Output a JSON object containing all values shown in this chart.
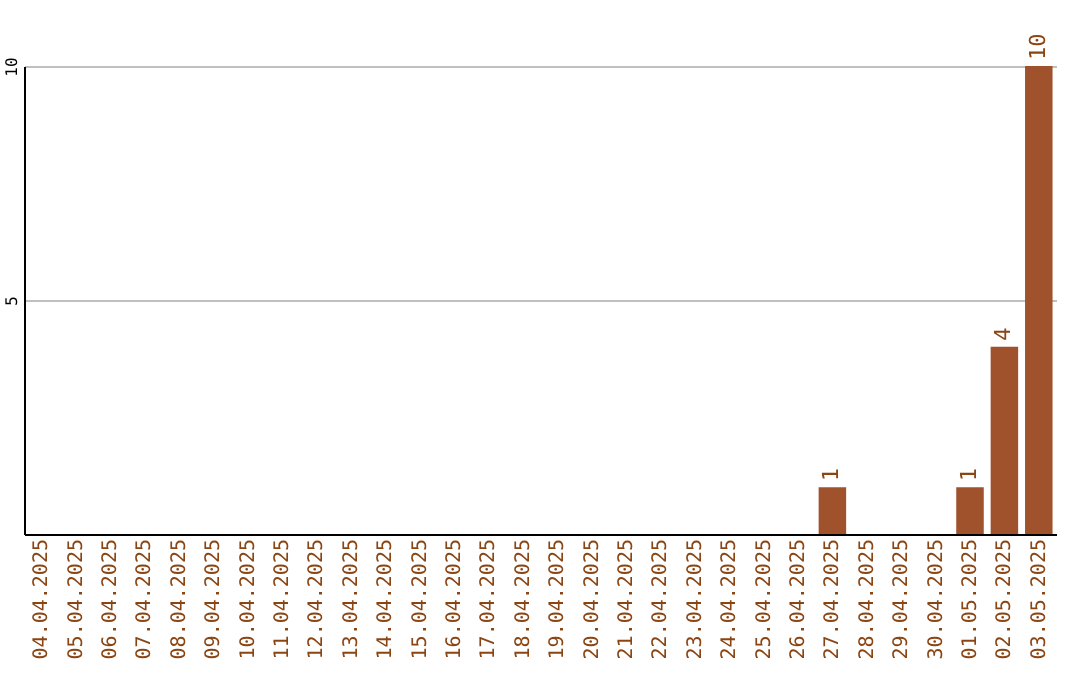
{
  "chart_data": {
    "type": "bar",
    "categories": [
      "04.04.2025",
      "05.04.2025",
      "06.04.2025",
      "07.04.2025",
      "08.04.2025",
      "09.04.2025",
      "10.04.2025",
      "11.04.2025",
      "12.04.2025",
      "13.04.2025",
      "14.04.2025",
      "15.04.2025",
      "16.04.2025",
      "17.04.2025",
      "18.04.2025",
      "19.04.2025",
      "20.04.2025",
      "21.04.2025",
      "22.04.2025",
      "23.04.2025",
      "24.04.2025",
      "25.04.2025",
      "26.04.2025",
      "27.04.2025",
      "28.04.2025",
      "29.04.2025",
      "30.04.2025",
      "01.05.2025",
      "02.05.2025",
      "03.05.2025"
    ],
    "values": [
      0,
      0,
      0,
      0,
      0,
      0,
      0,
      0,
      0,
      0,
      0,
      0,
      0,
      0,
      0,
      0,
      0,
      0,
      0,
      0,
      0,
      0,
      0,
      1,
      0,
      0,
      0,
      1,
      4,
      10
    ],
    "value_labels": [
      null,
      null,
      null,
      null,
      null,
      null,
      null,
      null,
      null,
      null,
      null,
      null,
      null,
      null,
      null,
      null,
      null,
      null,
      null,
      null,
      null,
      null,
      null,
      "1",
      null,
      null,
      null,
      "1",
      "4",
      "10"
    ],
    "color": "#a0522d",
    "ylim": [
      0,
      10
    ],
    "yticks": [
      5,
      10
    ],
    "grid": "y"
  }
}
